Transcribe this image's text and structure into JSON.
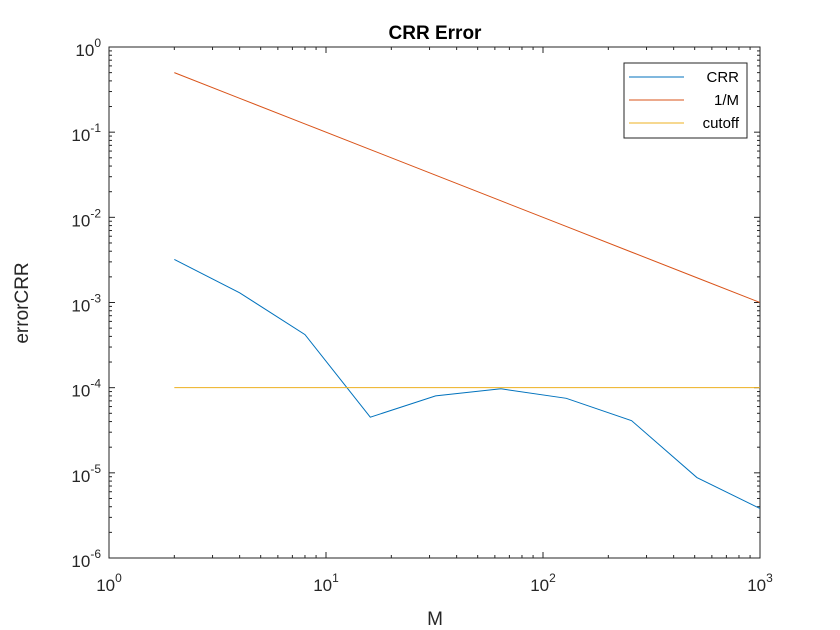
{
  "chart_data": {
    "type": "line",
    "title": "CRR Error",
    "xlabel": "M",
    "ylabel": "errorCRR",
    "xscale": "log",
    "yscale": "log",
    "xlim": [
      1,
      1000
    ],
    "ylim": [
      1e-06,
      1
    ],
    "x_ticks": [
      {
        "value": 1,
        "base": "10",
        "exp": "0"
      },
      {
        "value": 10,
        "base": "10",
        "exp": "1"
      },
      {
        "value": 100,
        "base": "10",
        "exp": "2"
      },
      {
        "value": 1000,
        "base": "10",
        "exp": "3"
      }
    ],
    "y_ticks": [
      {
        "value": 1e-06,
        "base": "10",
        "exp": "-6"
      },
      {
        "value": 1e-05,
        "base": "10",
        "exp": "-5"
      },
      {
        "value": 0.0001,
        "base": "10",
        "exp": "-4"
      },
      {
        "value": 0.001,
        "base": "10",
        "exp": "-3"
      },
      {
        "value": 0.01,
        "base": "10",
        "exp": "-2"
      },
      {
        "value": 0.1,
        "base": "10",
        "exp": "-1"
      },
      {
        "value": 1,
        "base": "10",
        "exp": "0"
      }
    ],
    "grid": false,
    "legend_position": "top-right",
    "series": [
      {
        "name": "CRR",
        "color": "#0072BD",
        "x": [
          2,
          4,
          8,
          16,
          32,
          64,
          128,
          256,
          512,
          1024
        ],
        "y": [
          0.0032,
          0.0013,
          0.00042,
          4.5e-05,
          8e-05,
          9.7e-05,
          7.5e-05,
          4.1e-05,
          8.8e-06,
          3.7e-06
        ]
      },
      {
        "name": "1/M",
        "color": "#D95319",
        "x": [
          2,
          4,
          8,
          16,
          32,
          64,
          128,
          256,
          512,
          1024
        ],
        "y": [
          0.5,
          0.25,
          0.125,
          0.0625,
          0.03125,
          0.015625,
          0.0078125,
          0.00390625,
          0.001953125,
          0.0009765625
        ]
      },
      {
        "name": "cutoff",
        "color": "#EDB120",
        "x": [
          2,
          4,
          8,
          16,
          32,
          64,
          128,
          256,
          512,
          1024
        ],
        "y": [
          0.0001,
          0.0001,
          0.0001,
          0.0001,
          0.0001,
          0.0001,
          0.0001,
          0.0001,
          0.0001,
          0.0001
        ]
      }
    ]
  }
}
